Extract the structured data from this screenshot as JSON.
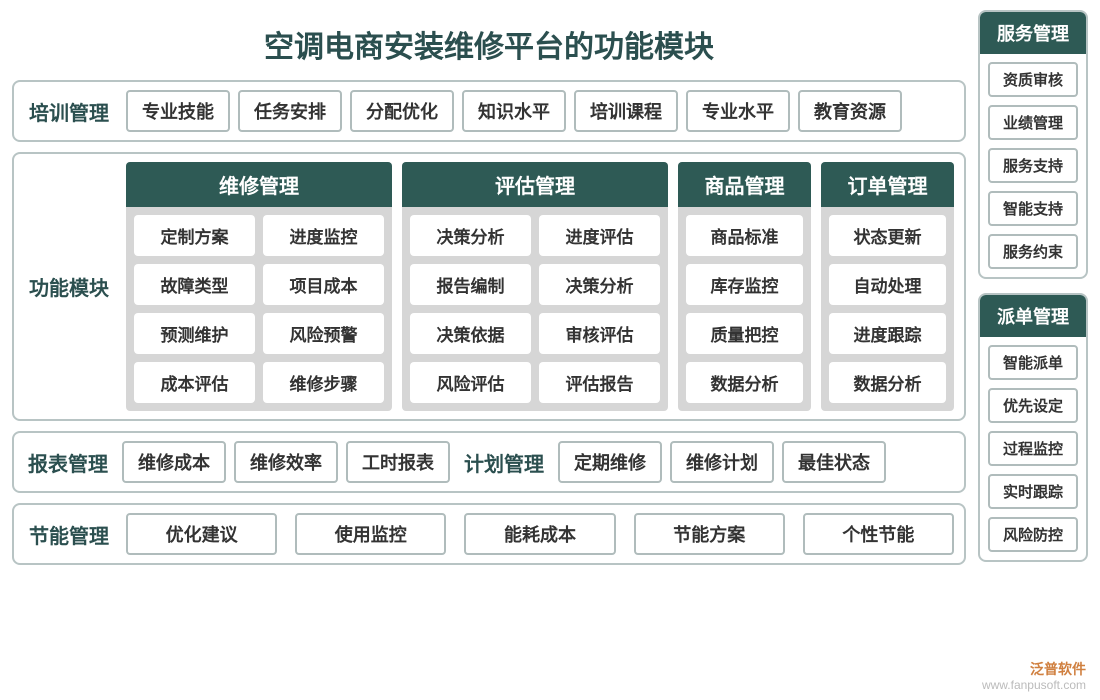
{
  "colors": {
    "header_bg": "#2e5a55",
    "header_fg": "#ffffff",
    "border": "#b8c4c4",
    "chip_border": "#b0bcbc",
    "group_bg": "#d6d6d6",
    "text_dark": "#2b4f4f"
  },
  "title": "空调电商安装维修平台的功能模块",
  "row_training": {
    "label": "培训管理",
    "items": [
      "专业技能",
      "任务安排",
      "分配优化",
      "知识水平",
      "培训课程",
      "专业水平",
      "教育资源"
    ]
  },
  "row_modules": {
    "label": "功能模块",
    "groups": [
      {
        "title": "维修管理",
        "cols": 2,
        "items": [
          "定制方案",
          "进度监控",
          "故障类型",
          "项目成本",
          "预测维护",
          "风险预警",
          "成本评估",
          "维修步骤"
        ]
      },
      {
        "title": "评估管理",
        "cols": 2,
        "items": [
          "决策分析",
          "进度评估",
          "报告编制",
          "决策分析",
          "决策依据",
          "审核评估",
          "风险评估",
          "评估报告"
        ]
      },
      {
        "title": "商品管理",
        "cols": 1,
        "items": [
          "商品标准",
          "库存监控",
          "质量把控",
          "数据分析"
        ]
      },
      {
        "title": "订单管理",
        "cols": 1,
        "items": [
          "状态更新",
          "自动处理",
          "进度跟踪",
          "数据分析"
        ]
      }
    ]
  },
  "row_report": {
    "label_a": "报表管理",
    "items_a": [
      "维修成本",
      "维修效率",
      "工时报表"
    ],
    "label_b": "计划管理",
    "items_b": [
      "定期维修",
      "维修计划",
      "最佳状态"
    ]
  },
  "row_energy": {
    "label": "节能管理",
    "items": [
      "优化建议",
      "使用监控",
      "能耗成本",
      "节能方案",
      "个性节能"
    ]
  },
  "side": [
    {
      "title": "服务管理",
      "items": [
        "资质审核",
        "业绩管理",
        "服务支持",
        "智能支持",
        "服务约束"
      ]
    },
    {
      "title": "派单管理",
      "items": [
        "智能派单",
        "优先设定",
        "过程监控",
        "实时跟踪",
        "风险防控"
      ]
    }
  ],
  "watermark": {
    "brand": "泛普软件",
    "url": "www.fanpusoft.com"
  }
}
